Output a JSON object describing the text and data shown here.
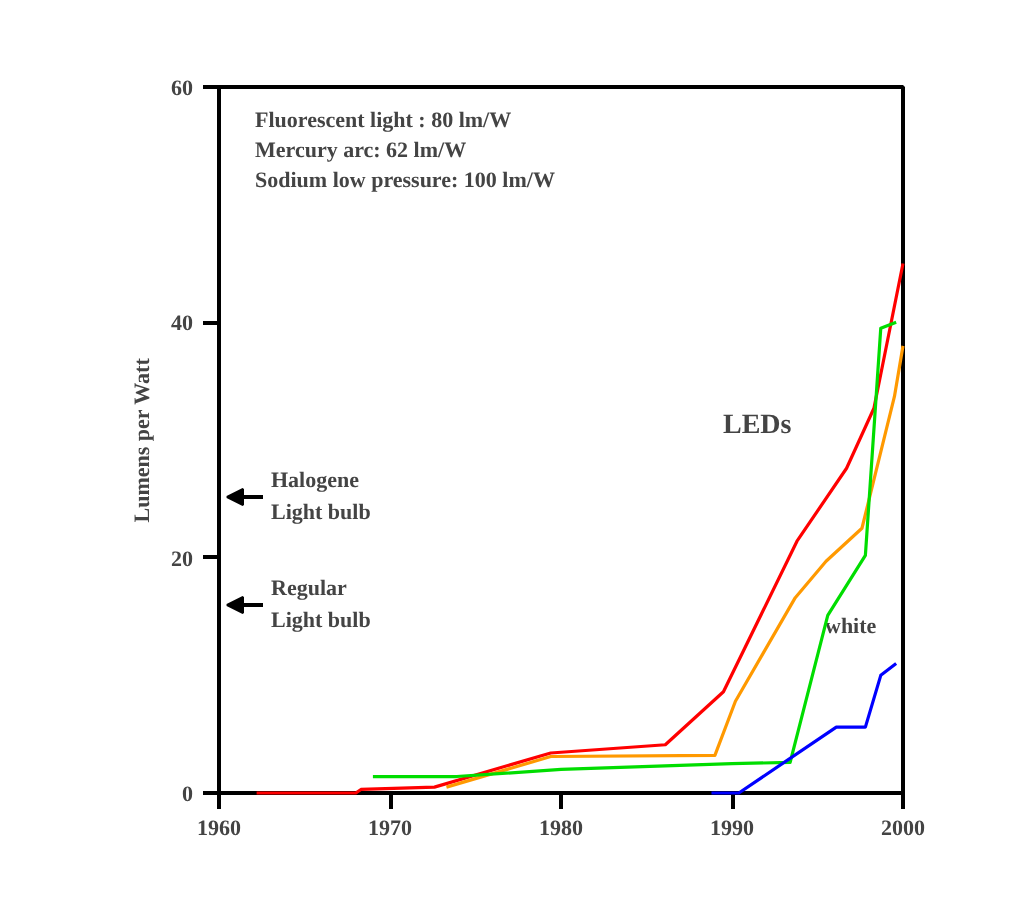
{
  "chart_data": {
    "type": "line",
    "ylabel": "Lumens per Watt",
    "xlim": [
      1960,
      2000
    ],
    "xticks": [
      1960,
      1970,
      1980,
      1990,
      2000
    ],
    "ylim": [
      0,
      60
    ],
    "yticks": [
      0,
      20,
      40,
      60
    ],
    "grid": false,
    "marker": "none",
    "line_style": "solid",
    "series": [
      {
        "color": "#ff0000",
        "x": [
          1962.2,
          1968,
          1968.3,
          1972.6,
          1979.4,
          1986.1,
          1989.5,
          1993.8,
          1996.7,
          1998.3,
          2000
        ],
        "values": [
          0,
          0,
          0.3,
          0.5,
          3.4,
          4.1,
          8.6,
          21.4,
          27.6,
          32.7,
          45
        ]
      },
      {
        "color": "#ff9900",
        "x": [
          1973.3,
          1979.4,
          1989,
          1990.2,
          1993.7,
          1995.5,
          1997.6,
          1999.5,
          2000
        ],
        "values": [
          0.5,
          3.1,
          3.2,
          7.8,
          16.6,
          19.7,
          22.5,
          33.7,
          38
        ]
      },
      {
        "color": "#00dd00",
        "x": [
          1969,
          1973.9,
          1980,
          1990,
          1993.4,
          1995.6,
          1997.8,
          1998.7,
          1999.6
        ],
        "values": [
          1.4,
          1.4,
          2.0,
          2.5,
          2.6,
          15.1,
          20.2,
          39.5,
          40
        ]
      },
      {
        "color": "#0000ff",
        "x": [
          1988.8,
          1990.4,
          1996.1,
          1997.8,
          1998.7,
          1999.6
        ],
        "values": [
          0,
          0,
          5.6,
          5.6,
          10.0,
          11.0
        ]
      }
    ],
    "annotations": [
      "Fluorescent light :   80 lm/W",
      "Mercury arc:   62 lm/W",
      "Sodium low pressure:   100 lm/W",
      "Halogene\nLight bulb",
      "Regular\nLight bulb",
      "LEDs",
      "white"
    ]
  }
}
